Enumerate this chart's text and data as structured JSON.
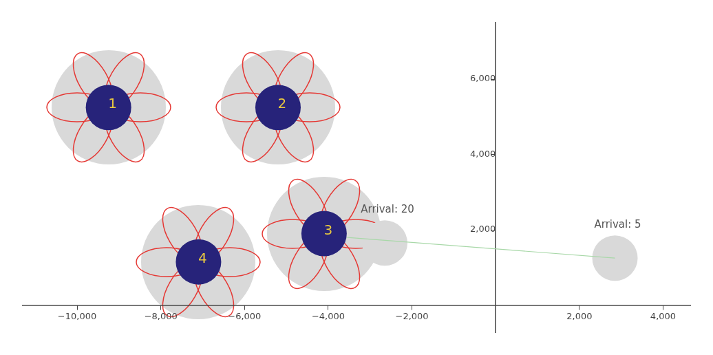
{
  "chart_data": {
    "type": "scatter",
    "series": [
      {
        "color": "#d9d9d9",
        "x": [
          -2650,
          2850
        ],
        "values": [
          1650,
          1250
        ]
      },
      {
        "type": "line",
        "marker": "none",
        "color": "#a8d8a8",
        "x": [
          -3550,
          2850
        ],
        "values": [
          1800,
          1250
        ]
      },
      {
        "color": "#27237a",
        "x": [
          -9250,
          -5200,
          -4100,
          -7100
        ],
        "values": [
          5250,
          5250,
          1900,
          1150
        ]
      }
    ],
    "xlim": [
      -11300,
      4650
    ],
    "ylim": [
      -720,
      7500
    ],
    "xticks": [
      {
        "value": -10000,
        "label": "−10,000"
      },
      {
        "value": -8000,
        "label": "−8,000"
      },
      {
        "value": -6000,
        "label": "−6,000"
      },
      {
        "value": -4000,
        "label": "−4,000"
      },
      {
        "value": -2000,
        "label": "−2,000"
      },
      {
        "value": 2000,
        "label": "2,000"
      },
      {
        "value": 4000,
        "label": "4,000"
      }
    ],
    "yticks": [
      {
        "value": 2000,
        "label": "2,000"
      },
      {
        "value": 4000,
        "label": "4,000"
      },
      {
        "value": 6000,
        "label": "6,000"
      }
    ],
    "grid": false,
    "legend": false,
    "marker": "circle",
    "annotations": [
      {
        "text": "1",
        "x": -9250,
        "y": 5250
      },
      {
        "text": "2",
        "x": -5200,
        "y": 5250
      },
      {
        "text": "3",
        "x": -4100,
        "y": 1900
      },
      {
        "text": "4",
        "x": -7100,
        "y": 1150
      },
      {
        "text": "Arrival: 20",
        "x": -2650,
        "y": 1650
      },
      {
        "text": "Arrival: 5",
        "x": 2850,
        "y": 1250
      }
    ]
  }
}
